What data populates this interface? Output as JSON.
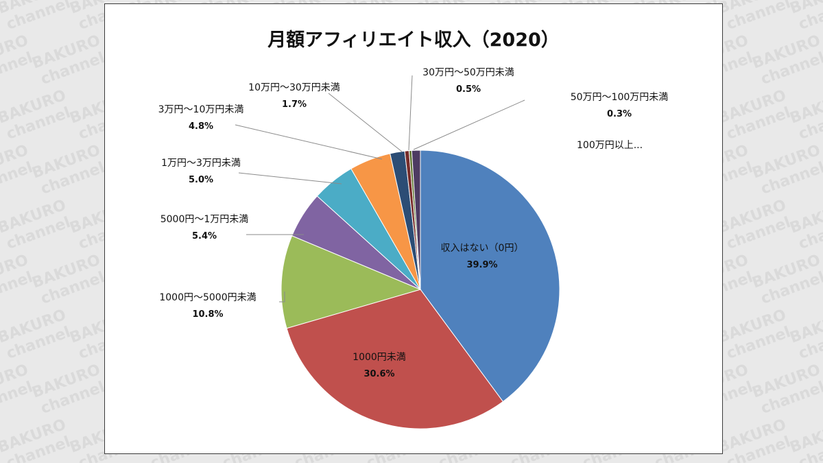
{
  "watermark": {
    "line1": "BAKURO",
    "line2": "channel"
  },
  "chart_data": {
    "type": "pie",
    "title": "月額アフィリエイト収入（2020）",
    "start_angle_deg": 0,
    "direction": "clockwise",
    "slices": [
      {
        "label": "収入はない（0円）",
        "value": 39.9,
        "value_label": "39.9%",
        "color": "#4f81bd"
      },
      {
        "label": "1000円未満",
        "value": 30.6,
        "value_label": "30.6%",
        "color": "#c0504d"
      },
      {
        "label": "1000円～5000円未満",
        "value": 10.8,
        "value_label": "10.8%",
        "color": "#9bbb59"
      },
      {
        "label": "5000円～1万円未満",
        "value": 5.4,
        "value_label": "5.4%",
        "color": "#8064a2"
      },
      {
        "label": "1万円～3万円未満",
        "value": 5.0,
        "value_label": "5.0%",
        "color": "#4bacc6"
      },
      {
        "label": "3万円～10万円未満",
        "value": 4.8,
        "value_label": "4.8%",
        "color": "#f79646"
      },
      {
        "label": "10万円～30万円未満",
        "value": 1.7,
        "value_label": "1.7%",
        "color": "#2c4d75"
      },
      {
        "label": "30万円～50万円未満",
        "value": 0.5,
        "value_label": "0.5%",
        "color": "#772c2a"
      },
      {
        "label": "50万円～100万円未満",
        "value": 0.3,
        "value_label": "0.3%",
        "color": "#5f7530"
      },
      {
        "label": "100万円以上...",
        "value": 1.0,
        "value_label": "",
        "color": "#4d3b62"
      }
    ]
  }
}
